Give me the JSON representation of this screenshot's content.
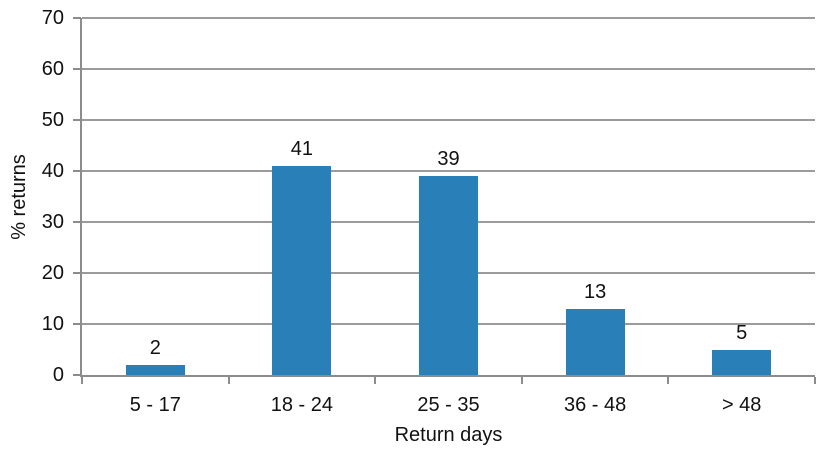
{
  "chart_data": {
    "type": "bar",
    "categories": [
      "5 - 17",
      "18 - 24",
      "25 - 35",
      "36 - 48",
      "> 48"
    ],
    "values": [
      2,
      41,
      39,
      13,
      5
    ],
    "data_labels": [
      "2",
      "41",
      "39",
      "13",
      "5"
    ],
    "title": "",
    "xlabel": "Return days",
    "ylabel": "% returns",
    "ylim": [
      0,
      70
    ],
    "yticks": [
      0,
      10,
      20,
      30,
      40,
      50,
      60,
      70
    ],
    "grid": true,
    "legend": "none",
    "colors": {
      "bar": "#2980B9",
      "grid": "#9B9B9B",
      "axis": "#8C8C8C",
      "text": "#111111",
      "background": "#FFFFFF"
    }
  }
}
